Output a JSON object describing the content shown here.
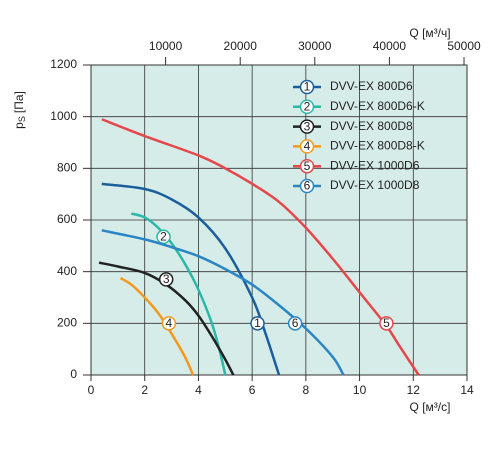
{
  "chart_data": {
    "type": "line",
    "ylabel": {
      "symbol": "p",
      "subscript": "S",
      "unit": "[Па]"
    },
    "xlabel": "Q [м³/с]",
    "x2label": "Q [м³/ч]",
    "xlim": [
      0,
      14
    ],
    "xticks": [
      0,
      2,
      4,
      6,
      8,
      10,
      12,
      14
    ],
    "x2lim": [
      0,
      50400
    ],
    "x2ticks": [
      10000,
      20000,
      30000,
      40000,
      50000
    ],
    "ylim": [
      0,
      1200
    ],
    "yticks": [
      0,
      200,
      400,
      600,
      800,
      1000,
      1200
    ],
    "grid": true,
    "legend": "upper right",
    "background": "#d6ece9",
    "series": [
      {
        "label": "1",
        "name": "DVV-EX 800D6",
        "color": "#1b5e9c",
        "x": [
          0.4,
          2,
          3,
          4,
          5,
          6,
          6.5,
          7
        ],
        "values": [
          740,
          720,
          680,
          610,
          490,
          300,
          160,
          0
        ],
        "marker_at": [
          6.2,
          200
        ]
      },
      {
        "label": "2",
        "name": "DVV-EX 800D6-K",
        "color": "#2bb8a6",
        "x": [
          1.5,
          2,
          2.5,
          3,
          3.5,
          4,
          4.5,
          4.8,
          5
        ],
        "values": [
          625,
          610,
          570,
          510,
          430,
          330,
          200,
          90,
          0
        ],
        "marker_at": [
          2.7,
          535
        ]
      },
      {
        "label": "3",
        "name": "DVV-EX 800D8",
        "color": "#222222",
        "x": [
          0.3,
          1,
          2,
          2.8,
          3.5,
          4,
          4.5,
          5,
          5.3
        ],
        "values": [
          435,
          420,
          395,
          350,
          290,
          230,
          150,
          60,
          0
        ],
        "marker_at": [
          2.8,
          370
        ]
      },
      {
        "label": "4",
        "name": "DVV-EX 800D8-K",
        "color": "#f29a1f",
        "x": [
          1.1,
          1.5,
          2,
          2.5,
          3,
          3.5,
          3.8
        ],
        "values": [
          375,
          350,
          300,
          240,
          160,
          70,
          0
        ],
        "marker_at": [
          2.9,
          200
        ]
      },
      {
        "label": "5",
        "name": "DVV-EX 1000D6",
        "color": "#e5474a",
        "x": [
          0.4,
          2,
          4,
          5,
          6,
          7,
          8,
          9,
          10,
          11,
          11.5,
          12.2
        ],
        "values": [
          990,
          925,
          850,
          800,
          740,
          670,
          570,
          450,
          320,
          190,
          110,
          0
        ],
        "marker_at": [
          11,
          200
        ]
      },
      {
        "label": "6",
        "name": "DVV-EX 1000D8",
        "color": "#2a85c5",
        "x": [
          0.4,
          2,
          3,
          4,
          5,
          6,
          7,
          8,
          9,
          9.4
        ],
        "values": [
          560,
          525,
          495,
          460,
          410,
          350,
          270,
          180,
          70,
          0
        ],
        "marker_at": [
          7.6,
          200
        ]
      }
    ]
  }
}
